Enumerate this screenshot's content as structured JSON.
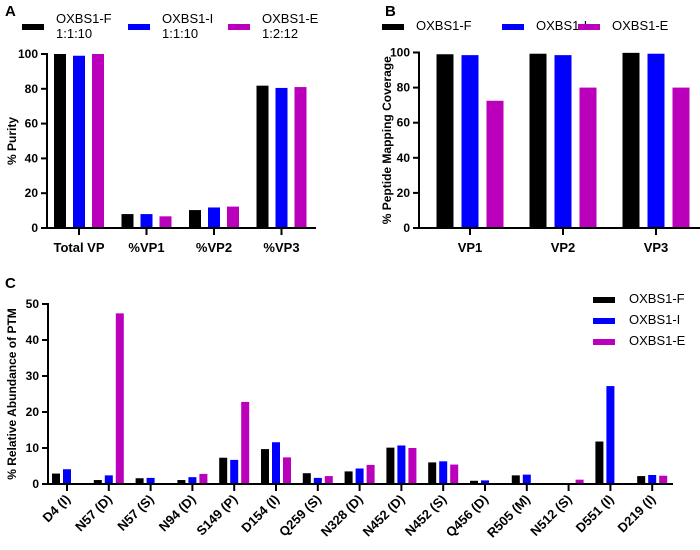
{
  "colors": {
    "OXBS1-F": "#000000",
    "OXBS1-I": "#0000ff",
    "OXBS1-E": "#bb00bb"
  },
  "chart_data": [
    {
      "panel": "A",
      "type": "bar",
      "ylabel": "% Purity",
      "ylim": [
        0,
        100
      ],
      "yticks": [
        0,
        20,
        40,
        60,
        80,
        100
      ],
      "legend": [
        {
          "name": "OXBS1-F",
          "sub": "1:1:10"
        },
        {
          "name": "OXBS1-I",
          "sub": "1:1:10"
        },
        {
          "name": "OXBS1-E",
          "sub": "1:2:12"
        }
      ],
      "legend_position": "top",
      "categories": [
        "Total VP",
        "%VP1",
        "%VP2",
        "%VP3"
      ],
      "series": [
        {
          "name": "OXBS1-F",
          "values": [
            100,
            8,
            10.3,
            81.8
          ]
        },
        {
          "name": "OXBS1-I",
          "values": [
            99,
            8,
            11.8,
            80.5
          ]
        },
        {
          "name": "OXBS1-E",
          "values": [
            100,
            6.7,
            12.3,
            81
          ]
        }
      ]
    },
    {
      "panel": "B",
      "type": "bar",
      "ylabel": "% Peptide Mapping Coverage",
      "ylim": [
        0,
        100
      ],
      "yticks": [
        0,
        20,
        40,
        60,
        80,
        100
      ],
      "legend": [
        {
          "name": "OXBS1-F"
        },
        {
          "name": "OXBS1-I"
        },
        {
          "name": "OXBS1-E"
        }
      ],
      "legend_position": "top",
      "categories": [
        "VP1",
        "VP2",
        "VP3"
      ],
      "series": [
        {
          "name": "OXBS1-F",
          "values": [
            99,
            99.3,
            99.8
          ]
        },
        {
          "name": "OXBS1-I",
          "values": [
            98.5,
            98.5,
            99.3
          ]
        },
        {
          "name": "OXBS1-E",
          "values": [
            72.5,
            80,
            80
          ]
        }
      ]
    },
    {
      "panel": "C",
      "type": "bar",
      "ylabel": "% Relative  Abundance of PTM",
      "ylim": [
        0,
        50
      ],
      "yticks": [
        0,
        10,
        20,
        30,
        40,
        50
      ],
      "legend": [
        {
          "name": "OXBS1-F"
        },
        {
          "name": "OXBS1-I"
        },
        {
          "name": "OXBS1-E"
        }
      ],
      "legend_position": "top-right",
      "categories": [
        "D4 (I)",
        "N57 (D)",
        "N57 (S)",
        "N94 (D)",
        "S149 (P)",
        "D154 (I)",
        "Q259 (S)",
        "N328 (D)",
        "N452 (D)",
        "N452 (S)",
        "Q456 (D)",
        "R505 (M)",
        "N512 (S)",
        "D551 (I)",
        "D219 (I)"
      ],
      "series": [
        {
          "name": "OXBS1-F",
          "values": [
            2.9,
            1.1,
            1.6,
            1.1,
            7.3,
            9.7,
            3.0,
            3.5,
            10.1,
            6.0,
            0.9,
            2.4,
            0,
            11.8,
            2.2
          ]
        },
        {
          "name": "OXBS1-I",
          "values": [
            4.1,
            2.4,
            1.7,
            1.9,
            6.7,
            11.6,
            1.7,
            4.3,
            10.7,
            6.3,
            1.0,
            2.6,
            0,
            27.2,
            2.5
          ]
        },
        {
          "name": "OXBS1-E",
          "values": [
            0,
            47.4,
            0,
            2.8,
            22.8,
            7.4,
            2.2,
            5.3,
            10.0,
            5.4,
            0,
            0,
            1.2,
            0,
            2.3
          ]
        }
      ]
    }
  ]
}
